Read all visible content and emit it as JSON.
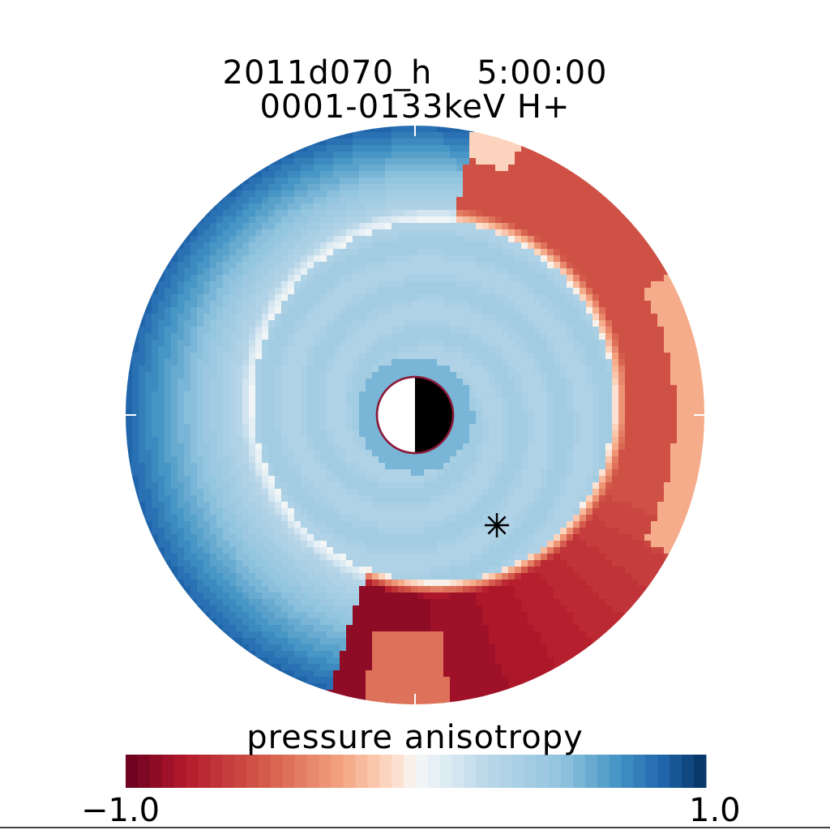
{
  "chart_data": {
    "type": "heatmap",
    "projection": "polar (equatorial plane view)",
    "title": "2011d070_h    5:00:00",
    "subtitle": "0001-0133keV H+",
    "colorbar": {
      "label": "pressure anisotropy",
      "min": -1.0,
      "max": 1.0,
      "min_label": "−1.0",
      "max_label": "1.0",
      "colormap": "diverging red-white-blue",
      "levels": 48
    },
    "features": {
      "center_planet": "half-lit circle (left white, right black)",
      "marker": "asterisk"
    },
    "field_description": {
      "inner_ring": "light blue (~0.3 to 0.4)",
      "outer_left": "dark blue (~0.8)",
      "outer_right": "red (~ -0.5 to -0.9)",
      "top_right": "salmon red (~ -0.5)"
    }
  },
  "colors": {
    "neg_end": "#67001f",
    "mid": "#f7f7f7",
    "pos_end": "#053061"
  }
}
